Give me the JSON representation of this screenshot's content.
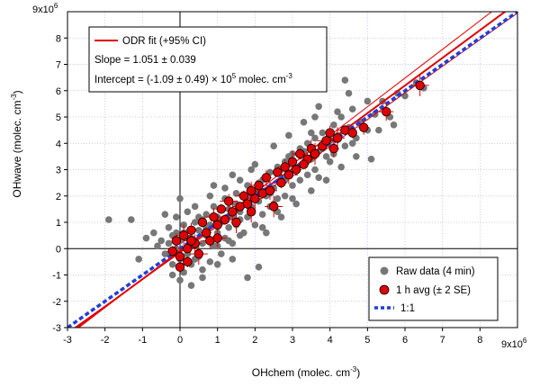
{
  "chart_data": {
    "type": "scatter",
    "xlabel": "OHchem (molec. cm",
    "xlabel_sup": "-3",
    "xlabel_end": ")",
    "ylabel": "OHwave (molec. cm",
    "ylabel_sup": "-3",
    "ylabel_end": ")",
    "x_ticks": [
      "-3",
      "-2",
      "-1",
      "0",
      "1",
      "2",
      "3",
      "4",
      "5",
      "6",
      "7",
      "8"
    ],
    "y_ticks": [
      "-3",
      "-2",
      "-1",
      "0",
      "1",
      "2",
      "3",
      "4",
      "5",
      "6",
      "7",
      "8"
    ],
    "x_exponent": {
      "base": "9x10",
      "exp": "6"
    },
    "y_exponent": {
      "base": "9x10",
      "exp": "6"
    },
    "xlim": [
      -3,
      9
    ],
    "ylim": [
      -3,
      9
    ],
    "grid": true,
    "colors": {
      "raw": "#777777",
      "avg": "#e00000",
      "fit": "#e00000",
      "one_to_one": "#1f3fd8",
      "grid": "#b8b8e8"
    },
    "fit_box": {
      "legend": "ODR fit (+95% CI)",
      "slope": "Slope = 1.051 ± 0.039",
      "intercept": "Intercept = (-1.09 ± 0.49) × 10",
      "intercept_exp": "5",
      "intercept_unit": " molec. cm",
      "intercept_unit_sup": "-3"
    },
    "legend": {
      "position": "bottom-right",
      "items": [
        "Raw data (4 min)",
        "1 h avg (± 2 SE)",
        "1:1"
      ]
    },
    "fit": {
      "slope": 1.051,
      "intercept": -0.109,
      "ci_slopes": [
        1.012,
        1.09
      ],
      "ci_intercepts": [
        -0.158,
        -0.06
      ]
    },
    "series": [
      {
        "name": "Raw data (4 min)",
        "kind": "raw",
        "points": [
          [
            -1.9,
            1.1
          ],
          [
            -1.3,
            1.1
          ],
          [
            -1.1,
            -0.4
          ],
          [
            -0.9,
            0.4
          ],
          [
            -0.7,
            0.6
          ],
          [
            -0.6,
            0.1
          ],
          [
            -0.5,
            0.3
          ],
          [
            -0.4,
            -0.2
          ],
          [
            -0.3,
            0.8
          ],
          [
            -0.3,
            0.2
          ],
          [
            -0.2,
            0.5
          ],
          [
            -0.2,
            -0.6
          ],
          [
            -0.1,
            1.2
          ],
          [
            -0.1,
            0.0
          ],
          [
            0.0,
            -0.4
          ],
          [
            0.0,
            0.3
          ],
          [
            0.1,
            0.9
          ],
          [
            0.1,
            -0.9
          ],
          [
            0.1,
            0.6
          ],
          [
            0.2,
            -0.2
          ],
          [
            0.2,
            1.4
          ],
          [
            0.3,
            0.4
          ],
          [
            0.3,
            -0.6
          ],
          [
            0.4,
            0.1
          ],
          [
            0.4,
            1.0
          ],
          [
            0.5,
            -0.3
          ],
          [
            0.5,
            0.7
          ],
          [
            0.6,
            -1.1
          ],
          [
            0.6,
            0.2
          ],
          [
            0.7,
            1.3
          ],
          [
            0.7,
            0.5
          ],
          [
            0.8,
            -0.5
          ],
          [
            0.8,
            0.9
          ],
          [
            0.9,
            1.6
          ],
          [
            0.9,
            0.1
          ],
          [
            1.0,
            0.6
          ],
          [
            1.0,
            1.2
          ],
          [
            1.1,
            -0.2
          ],
          [
            1.1,
            1.0
          ],
          [
            1.2,
            0.4
          ],
          [
            1.2,
            1.9
          ],
          [
            1.3,
            0.8
          ],
          [
            1.3,
            1.5
          ],
          [
            1.4,
            0.2
          ],
          [
            1.4,
            1.2
          ],
          [
            1.5,
            2.1
          ],
          [
            1.5,
            0.9
          ],
          [
            1.6,
            1.4
          ],
          [
            1.7,
            0.6
          ],
          [
            1.7,
            2.0
          ],
          [
            1.8,
            1.2
          ],
          [
            1.8,
            2.4
          ],
          [
            1.9,
            1.6
          ],
          [
            2.0,
            0.9
          ],
          [
            2.0,
            2.2
          ],
          [
            2.1,
            1.8
          ],
          [
            2.1,
            -0.7
          ],
          [
            2.2,
            2.6
          ],
          [
            2.2,
            1.3
          ],
          [
            2.3,
            2.0
          ],
          [
            2.4,
            2.9
          ],
          [
            2.4,
            1.6
          ],
          [
            2.5,
            2.3
          ],
          [
            2.6,
            3.1
          ],
          [
            2.6,
            1.9
          ],
          [
            2.7,
            2.6
          ],
          [
            2.8,
            3.3
          ],
          [
            2.8,
            2.0
          ],
          [
            2.9,
            2.8
          ],
          [
            3.0,
            3.6
          ],
          [
            3.0,
            2.4
          ],
          [
            3.1,
            3.0
          ],
          [
            3.2,
            2.6
          ],
          [
            3.2,
            3.8
          ],
          [
            3.3,
            3.2
          ],
          [
            3.4,
            4.0
          ],
          [
            3.4,
            2.8
          ],
          [
            3.5,
            3.4
          ],
          [
            3.6,
            4.2
          ],
          [
            3.6,
            3.0
          ],
          [
            3.7,
            3.7
          ],
          [
            3.8,
            4.4
          ],
          [
            3.9,
            3.5
          ],
          [
            4.0,
            4.1
          ],
          [
            4.1,
            4.7
          ],
          [
            4.1,
            3.6
          ],
          [
            4.2,
            4.3
          ],
          [
            4.3,
            5.0
          ],
          [
            4.4,
            3.9
          ],
          [
            4.5,
            4.6
          ],
          [
            4.6,
            5.3
          ],
          [
            4.7,
            4.2
          ],
          [
            4.8,
            4.8
          ],
          [
            5.0,
            4.5
          ],
          [
            5.1,
            3.4
          ],
          [
            5.2,
            5.1
          ],
          [
            5.4,
            5.6
          ],
          [
            5.6,
            5.0
          ],
          [
            5.8,
            5.9
          ],
          [
            6.0,
            5.8
          ],
          [
            6.3,
            6.3
          ],
          [
            6.5,
            6.1
          ],
          [
            4.4,
            6.4
          ],
          [
            3.7,
            5.4
          ],
          [
            4.5,
            5.9
          ],
          [
            3.3,
            4.8
          ],
          [
            2.9,
            4.3
          ],
          [
            2.5,
            3.9
          ],
          [
            1.9,
            3.0
          ],
          [
            1.6,
            2.6
          ],
          [
            1.2,
            2.3
          ],
          [
            0.8,
            2.0
          ],
          [
            0.4,
            1.6
          ],
          [
            0.0,
            1.9
          ],
          [
            -0.4,
            1.3
          ],
          [
            0.3,
            -1.4
          ],
          [
            0.0,
            -1.2
          ],
          [
            -0.2,
            -1.0
          ],
          [
            0.6,
            -0.8
          ],
          [
            1.0,
            -0.6
          ],
          [
            1.4,
            -0.4
          ],
          [
            1.8,
            -1.1
          ],
          [
            2.3,
            0.6
          ],
          [
            2.7,
            1.2
          ],
          [
            3.1,
            1.7
          ],
          [
            3.5,
            2.2
          ],
          [
            3.9,
            2.6
          ],
          [
            4.3,
            3.1
          ],
          [
            4.7,
            3.5
          ],
          [
            5.0,
            5.6
          ],
          [
            5.3,
            4.5
          ],
          [
            5.7,
            4.7
          ],
          [
            2.0,
            3.2
          ],
          [
            1.4,
            2.8
          ],
          [
            0.9,
            2.4
          ],
          [
            3.6,
            5.0
          ],
          [
            0.5,
            1.2
          ],
          [
            1.0,
            0.1
          ],
          [
            1.6,
            0.5
          ],
          [
            2.2,
            0.8
          ],
          [
            2.6,
            1.4
          ],
          [
            3.0,
            1.9
          ],
          [
            1.5,
            1.7
          ],
          [
            2.4,
            2.1
          ],
          [
            3.3,
            3.7
          ],
          [
            2.1,
            2.5
          ],
          [
            1.1,
            1.5
          ],
          [
            0.7,
            0.8
          ],
          [
            0.2,
            0.4
          ],
          [
            -0.1,
            0.6
          ],
          [
            4.0,
            3.3
          ],
          [
            4.6,
            4.0
          ],
          [
            3.8,
            3.8
          ],
          [
            2.8,
            2.6
          ],
          [
            1.9,
            2.1
          ],
          [
            0.6,
            1.1
          ],
          [
            1.3,
            0.3
          ],
          [
            2.5,
            1.7
          ],
          [
            3.7,
            2.7
          ],
          [
            0.2,
            0.0
          ],
          [
            0.4,
            -0.4
          ],
          [
            0.8,
            0.3
          ],
          [
            1.6,
            1.1
          ],
          [
            2.9,
            3.5
          ],
          [
            3.5,
            4.4
          ],
          [
            4.2,
            5.2
          ]
        ]
      },
      {
        "name": "1 h avg (± 2 SE)",
        "kind": "avg",
        "points": [
          [
            -0.1,
            0.3
          ],
          [
            0.0,
            -0.3
          ],
          [
            0.1,
            0.5
          ],
          [
            0.2,
            0.0
          ],
          [
            0.2,
            -0.5
          ],
          [
            0.3,
            0.7
          ],
          [
            0.4,
            0.2
          ],
          [
            0.5,
            -0.2
          ],
          [
            0.6,
            1.0
          ],
          [
            0.7,
            0.6
          ],
          [
            0.8,
            0.3
          ],
          [
            0.9,
            1.2
          ],
          [
            1.0,
            0.9
          ],
          [
            1.1,
            1.5
          ],
          [
            1.2,
            1.1
          ],
          [
            1.3,
            1.8
          ],
          [
            1.4,
            1.4
          ],
          [
            1.5,
            1.0
          ],
          [
            1.6,
            1.6
          ],
          [
            1.7,
            2.0
          ],
          [
            1.8,
            1.7
          ],
          [
            1.9,
            2.2
          ],
          [
            2.0,
            1.9
          ],
          [
            2.1,
            2.4
          ],
          [
            2.2,
            2.1
          ],
          [
            2.3,
            2.7
          ],
          [
            2.4,
            2.2
          ],
          [
            2.5,
            1.6
          ],
          [
            2.6,
            2.9
          ],
          [
            2.7,
            2.5
          ],
          [
            2.8,
            3.1
          ],
          [
            2.9,
            2.8
          ],
          [
            3.0,
            3.3
          ],
          [
            3.1,
            3.0
          ],
          [
            3.2,
            3.6
          ],
          [
            3.4,
            3.4
          ],
          [
            3.5,
            3.8
          ],
          [
            3.6,
            3.6
          ],
          [
            3.8,
            3.9
          ],
          [
            3.9,
            4.1
          ],
          [
            4.0,
            4.4
          ],
          [
            4.1,
            3.8
          ],
          [
            4.2,
            4.2
          ],
          [
            4.4,
            4.5
          ],
          [
            4.6,
            4.4
          ],
          [
            4.9,
            4.6
          ],
          [
            5.5,
            5.2
          ],
          [
            6.4,
            6.2
          ],
          [
            0.0,
            -0.7
          ],
          [
            -0.2,
            -0.1
          ],
          [
            0.3,
            0.3
          ],
          [
            1.0,
            0.4
          ],
          [
            1.9,
            1.4
          ],
          [
            3.3,
            3.2
          ]
        ]
      }
    ]
  }
}
